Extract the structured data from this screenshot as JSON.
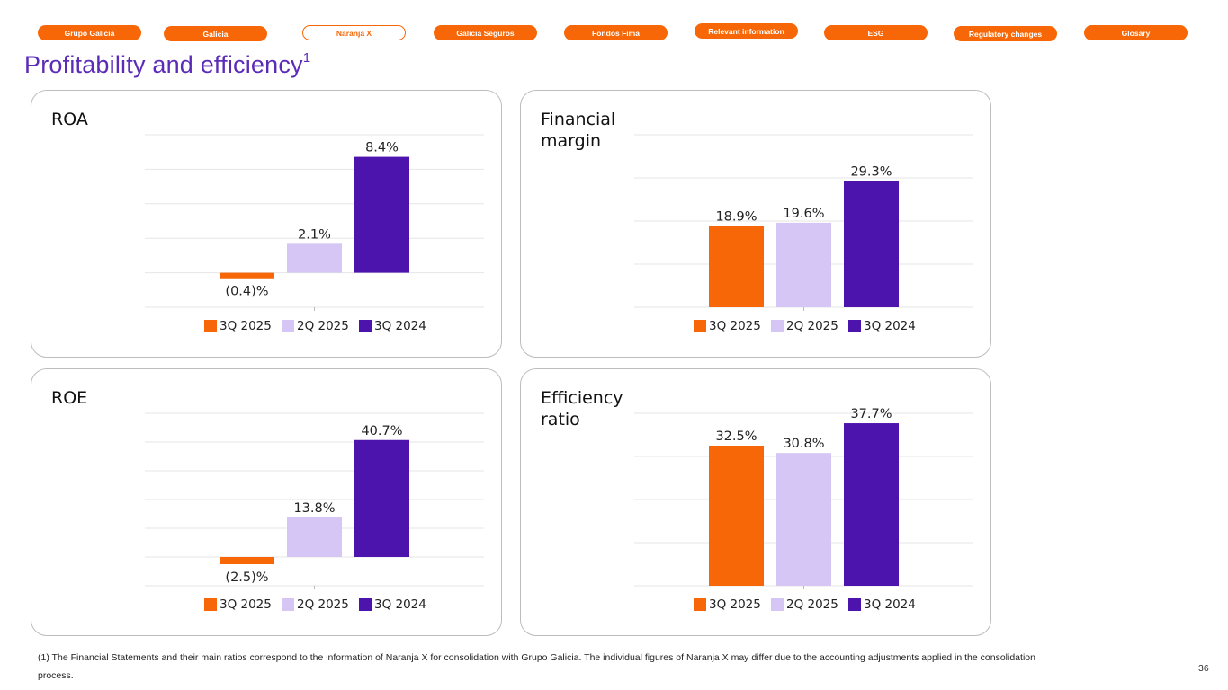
{
  "nav": {
    "items": [
      {
        "label": "Grupo Galicia",
        "active": false
      },
      {
        "label": "Galicia",
        "active": false
      },
      {
        "label": "Naranja X",
        "active": true
      },
      {
        "label": "Galicia Seguros",
        "active": false
      },
      {
        "label": "Fondos Fima",
        "active": false
      },
      {
        "label": "Relevant information",
        "active": false
      },
      {
        "label": "ESG",
        "active": false
      },
      {
        "label": "Regulatory changes",
        "active": false
      },
      {
        "label": "Glosary",
        "active": false
      }
    ]
  },
  "page": {
    "title": "Profitability and efficiency",
    "title_superscript": "1",
    "footnote": "(1) The Financial Statements and their main ratios correspond to the information of Naranja X for consolidation with Grupo Galicia. The individual figures of Naranja X may differ due to the accounting adjustments applied in the consolidation process.",
    "page_number": "36"
  },
  "colors": {
    "accent_orange": "#f76707",
    "title_purple": "#5b2cb8",
    "series_3q2025": "#f76707",
    "series_2q2025": "#d6c6f5",
    "series_3q2024": "#4d14ad",
    "gridline": "#e6e6e6"
  },
  "chart_data": [
    {
      "id": "roa",
      "type": "bar",
      "title": "ROA",
      "categories": [
        "3Q 2025",
        "2Q 2025",
        "3Q 2024"
      ],
      "values": [
        -0.4,
        2.1,
        8.4
      ],
      "data_labels": [
        "(0.4)%",
        "2.1%",
        "8.4%"
      ],
      "unit": "%",
      "ylim": [
        -2.5,
        10
      ],
      "ystep": 2.5,
      "grid": true,
      "legend": "bottom",
      "xlabel": "",
      "ylabel": ""
    },
    {
      "id": "financial-margin",
      "type": "bar",
      "title": "Financial margin",
      "categories": [
        "3Q 2025",
        "2Q 2025",
        "3Q 2024"
      ],
      "values": [
        18.9,
        19.6,
        29.3
      ],
      "data_labels": [
        "18.9%",
        "19.6%",
        "29.3%"
      ],
      "unit": "%",
      "ylim": [
        0,
        40
      ],
      "ystep": 10,
      "grid": true,
      "legend": "bottom",
      "xlabel": "",
      "ylabel": ""
    },
    {
      "id": "roe",
      "type": "bar",
      "title": "ROE",
      "categories": [
        "3Q 2025",
        "2Q 2025",
        "3Q 2024"
      ],
      "values": [
        -2.5,
        13.8,
        40.7
      ],
      "data_labels": [
        "(2.5)%",
        "13.8%",
        "40.7%"
      ],
      "unit": "%",
      "ylim": [
        -10,
        50
      ],
      "ystep": 10,
      "grid": true,
      "legend": "bottom",
      "xlabel": "",
      "ylabel": ""
    },
    {
      "id": "efficiency-ratio",
      "type": "bar",
      "title": "Efficiency ratio",
      "categories": [
        "3Q 2025",
        "2Q 2025",
        "3Q 2024"
      ],
      "values": [
        32.5,
        30.8,
        37.7
      ],
      "data_labels": [
        "32.5%",
        "30.8%",
        "37.7%"
      ],
      "unit": "%",
      "ylim": [
        0,
        40
      ],
      "ystep": 10,
      "grid": true,
      "legend": "bottom",
      "xlabel": "",
      "ylabel": ""
    }
  ]
}
